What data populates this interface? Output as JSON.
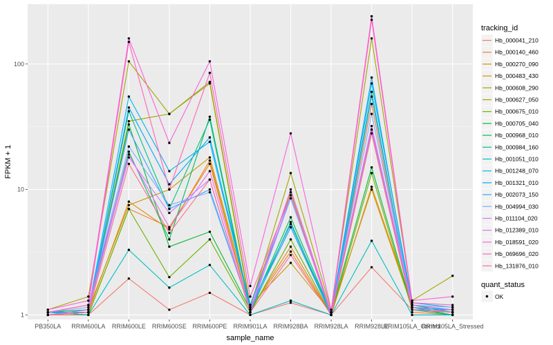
{
  "chart_data": {
    "type": "line",
    "y_scale": "log",
    "ylim": [
      0.92,
      300
    ],
    "xlabel": "sample_name",
    "ylabel": "FPKM + 1",
    "y_ticks": [
      1,
      10,
      100
    ],
    "y_tick_labels": [
      "1",
      "10",
      "100"
    ],
    "grid": true,
    "legend_position": "right",
    "categories": [
      "PB350LA",
      "RRIM600LA",
      "RRIM600LE",
      "RRIM600SE",
      "RRIM600PE",
      "RRIM901LA",
      "RRIM928BA",
      "RRIM928LA",
      "RRIM928LE",
      "RRIM105LA_Control",
      "RRIM105LA_Stressed"
    ],
    "legend_title": "tracking_id",
    "points_legend_title": "quant_status",
    "points_legend_label": "OK",
    "series": [
      {
        "name": "Hb_000041_210",
        "color": "#F8766D",
        "values": [
          1.0,
          1.0,
          1.95,
          1.1,
          1.5,
          1.0,
          1.25,
          1.0,
          2.4,
          1.1,
          1.05
        ]
      },
      {
        "name": "Hb_000140_460",
        "color": "#F07F36",
        "values": [
          1.05,
          1.0,
          7.0,
          5.0,
          16.0,
          1.1,
          3.2,
          1.0,
          48.0,
          1.05,
          1.0
        ]
      },
      {
        "name": "Hb_000270_090",
        "color": "#E38900",
        "values": [
          1.0,
          1.05,
          8.0,
          4.8,
          17.0,
          1.1,
          3.5,
          1.0,
          10.5,
          1.2,
          1.1
        ]
      },
      {
        "name": "Hb_000483_430",
        "color": "#C99800",
        "values": [
          1.05,
          1.1,
          7.5,
          10.0,
          18.0,
          1.2,
          2.6,
          1.05,
          10.0,
          1.15,
          1.05
        ]
      },
      {
        "name": "Hb_000608_290",
        "color": "#A3A500",
        "values": [
          1.1,
          1.4,
          105.0,
          40.0,
          70.0,
          1.15,
          13.5,
          1.1,
          160.0,
          1.3,
          2.05
        ]
      },
      {
        "name": "Hb_000627_050",
        "color": "#9AA800",
        "values": [
          1.0,
          1.05,
          35.0,
          40.0,
          72.0,
          1.2,
          9.5,
          1.0,
          28.0,
          1.1,
          1.0
        ]
      },
      {
        "name": "Hb_000675_010",
        "color": "#6BB100",
        "values": [
          1.05,
          1.0,
          7.0,
          2.0,
          4.0,
          1.05,
          4.0,
          1.0,
          13.5,
          1.1,
          1.05
        ]
      },
      {
        "name": "Hb_000705_040",
        "color": "#00BA38",
        "values": [
          1.0,
          1.05,
          33.0,
          3.5,
          4.6,
          1.1,
          5.0,
          1.05,
          15.0,
          1.15,
          1.0
        ]
      },
      {
        "name": "Hb_000968_010",
        "color": "#00BD5C",
        "values": [
          1.05,
          1.1,
          20.0,
          4.0,
          38.0,
          1.1,
          6.0,
          1.05,
          30.0,
          1.2,
          1.05
        ]
      },
      {
        "name": "Hb_000984_160",
        "color": "#00C08B",
        "values": [
          1.0,
          1.05,
          42.0,
          7.0,
          36.0,
          1.05,
          5.5,
          1.0,
          60.0,
          1.1,
          1.0
        ]
      },
      {
        "name": "Hb_001051_010",
        "color": "#00BFC4",
        "values": [
          1.05,
          1.0,
          3.3,
          1.65,
          2.5,
          1.0,
          1.3,
          1.0,
          3.9,
          1.0,
          1.0
        ]
      },
      {
        "name": "Hb_001248_070",
        "color": "#00B4F0",
        "values": [
          1.0,
          1.1,
          55.0,
          14.0,
          24.0,
          1.15,
          5.3,
          1.05,
          70.0,
          1.25,
          1.15
        ]
      },
      {
        "name": "Hb_001321_010",
        "color": "#00A9FF",
        "values": [
          1.05,
          1.05,
          45.0,
          11.0,
          26.0,
          1.2,
          8.5,
          1.05,
          78.0,
          1.15,
          1.1
        ]
      },
      {
        "name": "Hb_002073_150",
        "color": "#35A2FF",
        "values": [
          1.0,
          1.1,
          30.0,
          7.0,
          10.0,
          1.1,
          5.0,
          1.0,
          55.0,
          1.1,
          1.1
        ]
      },
      {
        "name": "Hb_004994_030",
        "color": "#7CAEFF",
        "values": [
          1.05,
          1.15,
          22.0,
          7.5,
          9.5,
          1.1,
          8.5,
          1.05,
          40.0,
          1.2,
          1.15
        ]
      },
      {
        "name": "Hb_011104_020",
        "color": "#C77CFF",
        "values": [
          1.0,
          1.1,
          18.0,
          6.5,
          12.0,
          1.05,
          9.0,
          1.0,
          30.0,
          1.15,
          1.05
        ]
      },
      {
        "name": "Hb_012389_010",
        "color": "#E76BF3",
        "values": [
          1.05,
          1.2,
          19.0,
          5.0,
          14.0,
          1.1,
          10.0,
          1.05,
          32.0,
          1.2,
          1.1
        ]
      },
      {
        "name": "Hb_018591_020",
        "color": "#FA62DB",
        "values": [
          1.1,
          1.3,
          160.0,
          23.5,
          105.0,
          1.7,
          28.0,
          1.1,
          240.0,
          1.3,
          1.4
        ]
      },
      {
        "name": "Hb_069696_020",
        "color": "#FF62BC",
        "values": [
          1.05,
          1.2,
          150.0,
          10.0,
          85.0,
          1.4,
          9.0,
          1.05,
          225.0,
          1.25,
          1.2
        ]
      },
      {
        "name": "Hb_131876_010",
        "color": "#FF6C91",
        "values": [
          1.0,
          1.05,
          16.0,
          4.5,
          12.0,
          1.05,
          3.0,
          1.0,
          28.0,
          1.1,
          1.05
        ]
      }
    ]
  }
}
